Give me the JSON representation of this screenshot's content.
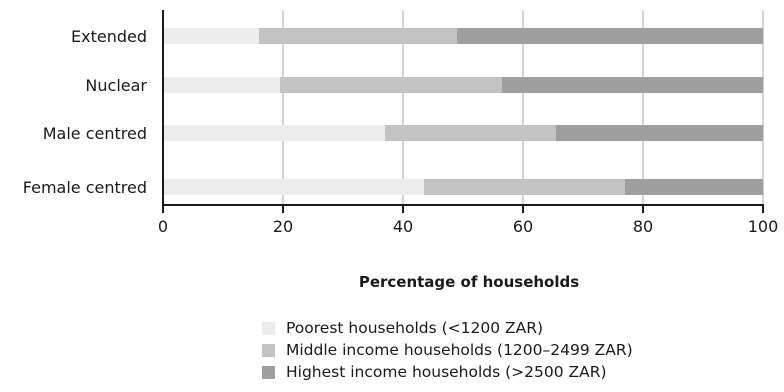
{
  "chart_data": {
    "type": "bar",
    "orientation": "horizontal",
    "stacked": true,
    "categories": [
      "Extended",
      "Nuclear",
      "Male centred",
      "Female centred"
    ],
    "series": [
      {
        "name": "Poorest households (<1200 ZAR)",
        "color": "#ececec",
        "values": [
          16,
          19.5,
          37,
          43.5
        ]
      },
      {
        "name": "Middle income households (1200–2499 ZAR)",
        "color": "#c3c3c3",
        "values": [
          33,
          37,
          28.5,
          33.5
        ]
      },
      {
        "name": "Highest income households (>2500 ZAR)",
        "color": "#9e9e9e",
        "values": [
          51,
          43.5,
          34.5,
          23
        ]
      }
    ],
    "x_ticks": [
      0,
      20,
      40,
      60,
      80,
      100
    ],
    "xlim": [
      0,
      100
    ],
    "xlabel": "Percentage of households",
    "grid": "vertical",
    "legend_position": "bottom"
  }
}
